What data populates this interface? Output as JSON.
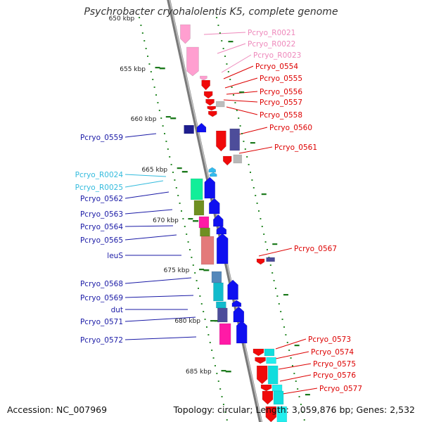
{
  "title": "Psychrobacter cryohalolentis K5, complete genome",
  "footer": {
    "accession": "Accession: NC_007969",
    "summary": "Topology: circular; Length: 3,059,876 bp; Genes: 2,532"
  },
  "kbp_labels": [
    {
      "text": "650 kbp",
      "pos": 650
    },
    {
      "text": "655 kbp",
      "pos": 655
    },
    {
      "text": "660 kbp",
      "pos": 660
    },
    {
      "text": "665 kbp",
      "pos": 665
    },
    {
      "text": "670 kbp",
      "pos": 670
    },
    {
      "text": "675 kbp",
      "pos": 675
    },
    {
      "text": "680 kbp",
      "pos": 680
    },
    {
      "text": "685 kbp",
      "pos": 685
    }
  ],
  "left_genes": [
    {
      "label": "Pcryo_0559",
      "color": "#1a1aa6"
    },
    {
      "label": "Pcryo_R0024",
      "color": "#33bbdd"
    },
    {
      "label": "Pcryo_R0025",
      "color": "#33bbdd"
    },
    {
      "label": "Pcryo_0562",
      "color": "#1a1aa6"
    },
    {
      "label": "Pcryo_0563",
      "color": "#1a1aa6"
    },
    {
      "label": "Pcryo_0564",
      "color": "#1a1aa6"
    },
    {
      "label": "Pcryo_0565",
      "color": "#1a1aa6"
    },
    {
      "label": "leuS",
      "color": "#1a1aa6"
    },
    {
      "label": "Pcryo_0568",
      "color": "#1a1aa6"
    },
    {
      "label": "Pcryo_0569",
      "color": "#1a1aa6"
    },
    {
      "label": "dut",
      "color": "#1a1aa6"
    },
    {
      "label": "Pcryo_0571",
      "color": "#1a1aa6"
    },
    {
      "label": "Pcryo_0572",
      "color": "#1a1aa6"
    }
  ],
  "right_genes": [
    {
      "label": "Pcryo_R0021",
      "color": "#ee88bb"
    },
    {
      "label": "Pcryo_R0022",
      "color": "#ee88bb"
    },
    {
      "label": "Pcryo_R0023",
      "color": "#ee88bb"
    },
    {
      "label": "Pcryo_0554",
      "color": "#dd0000"
    },
    {
      "label": "Pcryo_0555",
      "color": "#dd0000"
    },
    {
      "label": "Pcryo_0556",
      "color": "#dd0000"
    },
    {
      "label": "Pcryo_0557",
      "color": "#dd0000"
    },
    {
      "label": "Pcryo_0558",
      "color": "#dd0000"
    },
    {
      "label": "Pcryo_0560",
      "color": "#dd0000"
    },
    {
      "label": "Pcryo_0561",
      "color": "#dd0000"
    },
    {
      "label": "Pcryo_0567",
      "color": "#dd0000"
    },
    {
      "label": "Pcryo_0573",
      "color": "#dd0000"
    },
    {
      "label": "Pcryo_0574",
      "color": "#dd0000"
    },
    {
      "label": "Pcryo_0575",
      "color": "#dd0000"
    },
    {
      "label": "Pcryo_0576",
      "color": "#dd0000"
    },
    {
      "label": "Pcryo_0577",
      "color": "#dd0000"
    }
  ],
  "colors": {
    "backbone": "#888888",
    "dots": "#2a8a2a",
    "forward_strand": "#1010ee",
    "reverse_strand": "#ee1111",
    "rna": "#ff99cc"
  }
}
